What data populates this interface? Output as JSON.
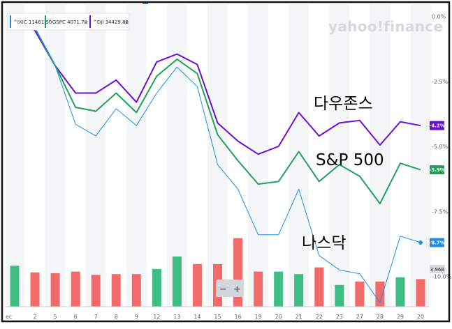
{
  "watermark": "yahoo!finance",
  "legend": [
    {
      "label": "^IXIC 11461.50",
      "color": "#1e8fe8"
    },
    {
      "label": "^GSPC 4071.70",
      "color": "#22a05a"
    },
    {
      "label": "^DJI 34429.88",
      "color": "#6a0fd8"
    }
  ],
  "legend_close": "×",
  "annotations": {
    "dji": "다우존스",
    "gspc": "S&P 500",
    "ixic": "나스닥"
  },
  "zoom": {
    "minus": "−",
    "plus": "+"
  },
  "colors": {
    "ixic": "#1e8fe8",
    "gspc": "#22a05a",
    "dji": "#6a0fd8",
    "vol_up": "#3ebd85",
    "vol_down": "#f26b6b"
  },
  "chart_data": {
    "type": "line",
    "title": "",
    "xlabel": "",
    "ylabel": "",
    "x": [
      "ec",
      "2",
      "5",
      "6",
      "7",
      "8",
      "9",
      "12",
      "13",
      "14",
      "15",
      "16",
      "19",
      "20",
      "21",
      "22",
      "23",
      "27",
      "28",
      "29",
      "20"
    ],
    "y_ticks": [
      "0.0%",
      "-2.5%",
      "-5.0%",
      "-7.5%",
      "-10.0%"
    ],
    "ylim": [
      -11.2,
      0.4
    ],
    "grid": "alternating vertical bands",
    "series": [
      {
        "key": "dji",
        "name": "^DJI 34429.88",
        "values": [
          -0.1,
          -0.55,
          -1.9,
          -2.95,
          -2.95,
          -2.45,
          -3.3,
          -1.75,
          -1.45,
          -1.85,
          -4.1,
          -4.8,
          -5.3,
          -5.0,
          -3.7,
          -4.6,
          -4.1,
          -4.0,
          -4.95,
          -4.05,
          -4.2
        ],
        "last_label": "-4.2%"
      },
      {
        "key": "gspc",
        "name": "^GSPC 4071.70",
        "values": [
          -0.15,
          -0.45,
          -1.9,
          -3.5,
          -3.65,
          -2.95,
          -3.7,
          -2.3,
          -1.65,
          -2.2,
          -4.55,
          -5.55,
          -6.45,
          -6.35,
          -5.2,
          -6.35,
          -5.7,
          -6.15,
          -7.2,
          -5.65,
          -5.9
        ],
        "last_label": "-5.9%"
      },
      {
        "key": "ixic",
        "name": "^IXIC 11461.50",
        "values": [
          -0.1,
          -0.45,
          -1.9,
          -4.15,
          -4.6,
          -3.55,
          -4.2,
          -2.95,
          -1.95,
          -2.7,
          -5.7,
          -6.65,
          -8.4,
          -8.4,
          -6.65,
          -9.2,
          -9.75,
          -9.9,
          -11.0,
          -8.45,
          -8.7
        ],
        "last_label": "-8.7%"
      }
    ],
    "volume": {
      "label": "3.96B",
      "values": [
        0.49,
        0.41,
        0.4,
        0.42,
        0.38,
        0.39,
        0.39,
        0.45,
        0.6,
        0.51,
        0.51,
        0.82,
        0.42,
        0.42,
        0.39,
        0.47,
        0.26,
        0.3,
        0.3,
        0.35,
        0.33
      ],
      "colors": [
        "up",
        "down",
        "down",
        "down",
        "down",
        "down",
        "down",
        "up",
        "up",
        "down",
        "down",
        "down",
        "down",
        "up",
        "up",
        "down",
        "up",
        "down",
        "down",
        "up",
        "down"
      ]
    }
  }
}
